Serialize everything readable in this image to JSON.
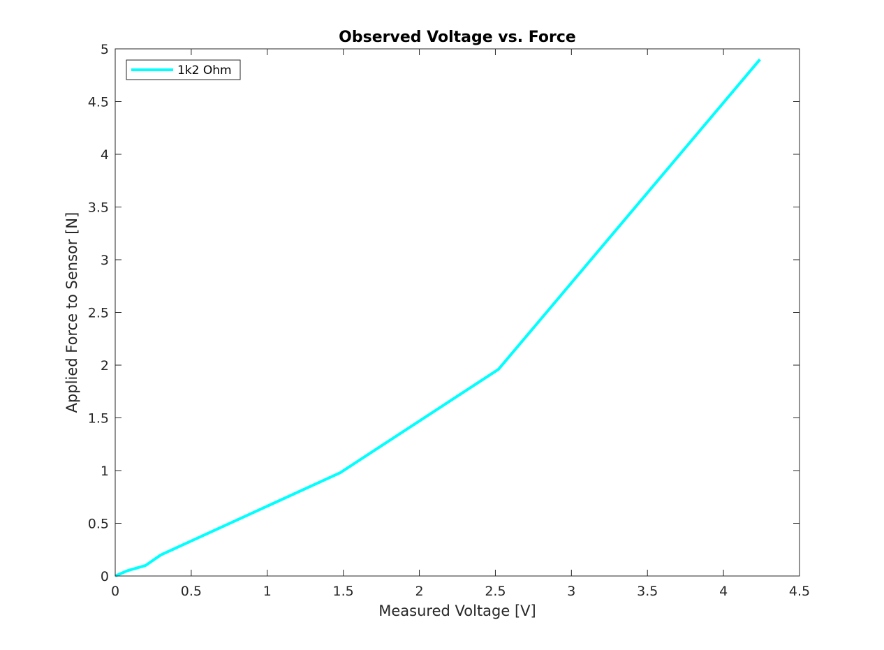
{
  "chart_data": {
    "type": "line",
    "title": "Observed Voltage vs. Force",
    "xlabel": "Measured Voltage [V]",
    "ylabel": "Applied Force to Sensor [N]",
    "xlim": [
      0,
      4.5
    ],
    "ylim": [
      0,
      5
    ],
    "xticks": [
      0,
      0.5,
      1,
      1.5,
      2,
      2.5,
      3,
      3.5,
      4,
      4.5
    ],
    "xtick_labels": [
      "0",
      "0.5",
      "1",
      "1.5",
      "2",
      "2.5",
      "3",
      "3.5",
      "4",
      "4.5"
    ],
    "yticks": [
      0,
      0.5,
      1,
      1.5,
      2,
      2.5,
      3,
      3.5,
      4,
      4.5,
      5
    ],
    "ytick_labels": [
      "0",
      "0.5",
      "1",
      "1.5",
      "2",
      "2.5",
      "3",
      "3.5",
      "4",
      "4.5",
      "5"
    ],
    "grid": false,
    "legend_location": "top-left",
    "series": [
      {
        "name": "1k2 Ohm",
        "color": "#00ffff",
        "x": [
          0,
          0.08,
          0.2,
          0.3,
          1.48,
          2.52,
          4.24
        ],
        "y": [
          0,
          0.05,
          0.1,
          0.2,
          0.98,
          1.96,
          4.9
        ]
      }
    ]
  }
}
